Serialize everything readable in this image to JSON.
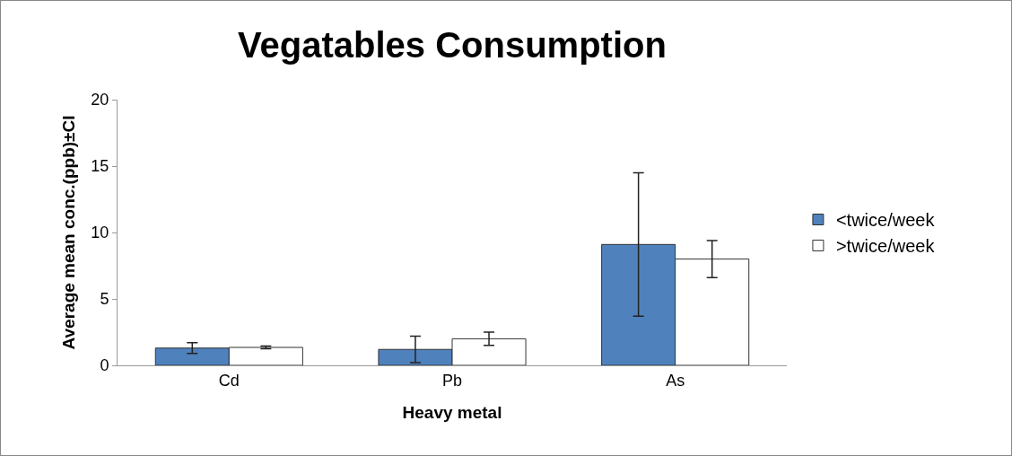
{
  "chart_data": {
    "type": "bar",
    "title": "Vegatables Consumption",
    "xlabel": "Heavy metal",
    "ylabel": "Average mean conc.(ppb)±CI",
    "categories": [
      "Cd",
      "Pb",
      "As"
    ],
    "series": [
      {
        "name": "<twice/week",
        "color": "#4f81bd",
        "values": [
          1.3,
          1.2,
          9.1
        ],
        "errors": [
          0.4,
          1.0,
          5.4
        ]
      },
      {
        "name": ">twice/week",
        "color": "#ffffff",
        "values": [
          1.35,
          2.0,
          8.0
        ],
        "errors": [
          0.1,
          0.5,
          1.4
        ]
      }
    ],
    "ylim": [
      0,
      20
    ],
    "yticks": [
      0,
      5,
      10,
      15,
      20
    ],
    "grid": false,
    "legend": "right"
  }
}
